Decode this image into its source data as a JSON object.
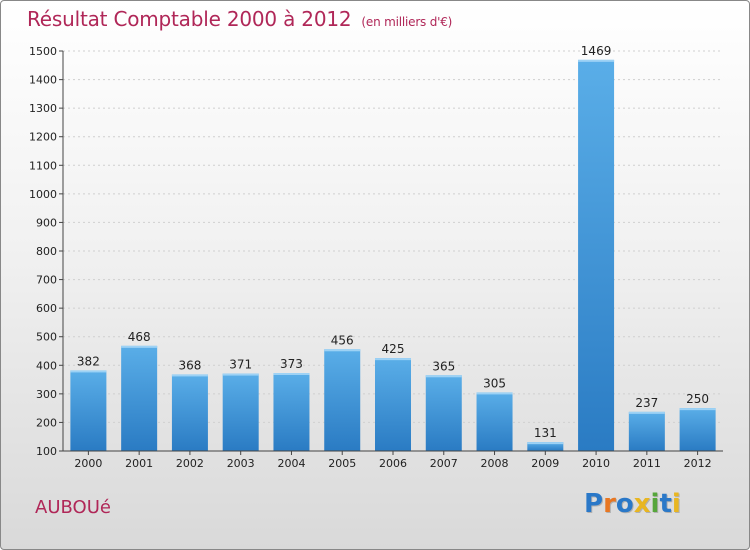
{
  "title": "Résultat Comptable 2000 à 2012",
  "subtitle": "(en milliers d'€)",
  "place": "AUBOUé",
  "logo": {
    "letters": [
      "P",
      "r",
      "o",
      "x",
      "i",
      "t",
      "i"
    ],
    "colors": [
      "#2a78c8",
      "#e87722",
      "#2a78c8",
      "#e8b622",
      "#56a63b",
      "#2a78c8",
      "#e8b622"
    ]
  },
  "chart_data": {
    "type": "bar",
    "categories": [
      "2000",
      "2001",
      "2002",
      "2003",
      "2004",
      "2005",
      "2006",
      "2007",
      "2008",
      "2009",
      "2010",
      "2011",
      "2012"
    ],
    "values": [
      382,
      468,
      368,
      371,
      373,
      456,
      425,
      365,
      305,
      131,
      1469,
      237,
      250
    ],
    "ylim": [
      100,
      1500
    ],
    "yticks": [
      100,
      200,
      300,
      400,
      500,
      600,
      700,
      800,
      900,
      1000,
      1100,
      1200,
      1300,
      1400,
      1500
    ],
    "grid": true,
    "bar_color": "#3a8fd6"
  }
}
